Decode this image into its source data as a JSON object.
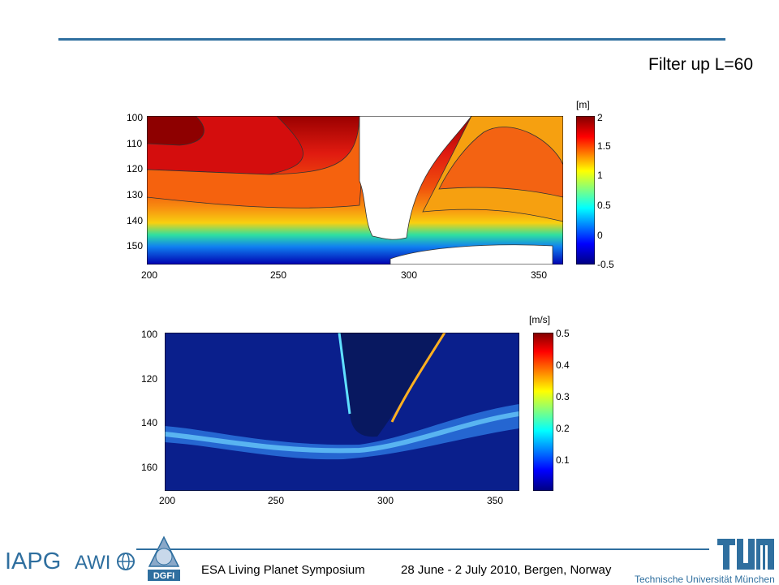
{
  "header": {
    "title": "Filter up L=60"
  },
  "panels": {
    "top": {
      "unit": "[m]",
      "y_ticks": [
        "100",
        "110",
        "120",
        "130",
        "140",
        "150"
      ],
      "x_ticks": [
        "200",
        "250",
        "300",
        "350"
      ],
      "colorbar_ticks": [
        "2",
        "1.5",
        "1",
        "0.5",
        "0",
        "-0.5"
      ]
    },
    "bottom": {
      "unit": "[m/s]",
      "y_ticks": [
        "100",
        "120",
        "140",
        "160"
      ],
      "x_ticks": [
        "200",
        "250",
        "300",
        "350"
      ],
      "colorbar_ticks": [
        "0.5",
        "0.4",
        "0.3",
        "0.2",
        "0.1"
      ]
    }
  },
  "footer": {
    "event": "ESA Living Planet Symposium",
    "dates": "28 June - 2 July 2010, Bergen, Norway",
    "logo_iapg": "IAPG",
    "logo_awi": "AWI",
    "logo_dgfi": "DGFI",
    "logo_tum": "TUM",
    "tum_name": "Technische Universität München"
  },
  "colors": {
    "accent": "#2f6f9f"
  }
}
